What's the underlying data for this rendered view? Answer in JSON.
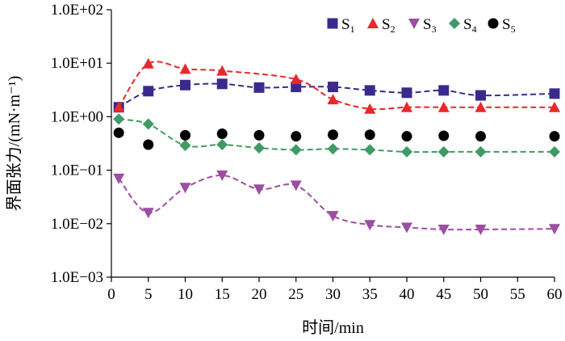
{
  "chart_data": {
    "type": "line",
    "xlabel": "时间/min",
    "ylabel": "界面张力/(mN·m⁻¹)",
    "x_ticks": [
      "0",
      "5",
      "10",
      "15",
      "20",
      "25",
      "30",
      "35",
      "40",
      "45",
      "50",
      "55",
      "60"
    ],
    "y_ticks": [
      "1.0E−03",
      "1.0E−02",
      "1.0E−01",
      "1.0E+00",
      "1.0E+01",
      "1.0E+02"
    ],
    "xlim": [
      0,
      60
    ],
    "ylim": [
      0.001,
      100
    ],
    "y_scale": "log",
    "legend_position": "top-right",
    "series": [
      {
        "name": "S1",
        "name_main": "S",
        "name_sub": "1",
        "marker": "square",
        "color": "#3B2A8C",
        "line": "dashed",
        "x": [
          1,
          5,
          10,
          15,
          20,
          25,
          30,
          35,
          40,
          45,
          50,
          60
        ],
        "y": [
          1.5,
          3.0,
          3.9,
          4.1,
          3.5,
          3.6,
          3.6,
          3.1,
          2.8,
          3.1,
          2.5,
          2.7
        ]
      },
      {
        "name": "S2",
        "name_main": "S",
        "name_sub": "2",
        "marker": "triangle-up",
        "color": "#E8282A",
        "line": "dashed",
        "x": [
          1,
          5,
          10,
          15,
          25,
          30,
          35,
          40,
          45,
          50,
          60
        ],
        "y": [
          1.5,
          9.8,
          7.8,
          7.2,
          5.0,
          2.1,
          1.4,
          1.5,
          1.5,
          1.5,
          1.5
        ]
      },
      {
        "name": "S3",
        "name_main": "S",
        "name_sub": "3",
        "marker": "triangle-down",
        "color": "#9B4FA0",
        "line": "dashed",
        "x": [
          1,
          5,
          10,
          15,
          20,
          25,
          30,
          35,
          40,
          45,
          50,
          60
        ],
        "y": [
          0.07,
          0.016,
          0.047,
          0.08,
          0.044,
          0.052,
          0.014,
          0.0095,
          0.0085,
          0.0078,
          0.0078,
          0.008
        ]
      },
      {
        "name": "S4",
        "name_main": "S",
        "name_sub": "4",
        "marker": "diamond",
        "color": "#3F9A65",
        "line": "dashed",
        "x": [
          1,
          5,
          10,
          15,
          20,
          25,
          30,
          35,
          40,
          45,
          50,
          60
        ],
        "y": [
          0.9,
          0.73,
          0.29,
          0.3,
          0.26,
          0.24,
          0.25,
          0.24,
          0.22,
          0.22,
          0.22,
          0.22
        ]
      },
      {
        "name": "S5",
        "name_main": "S",
        "name_sub": "5",
        "marker": "circle",
        "color": "#000000",
        "line": "none",
        "x": [
          1,
          5,
          10,
          15,
          20,
          25,
          30,
          35,
          40,
          45,
          50,
          60
        ],
        "y": [
          0.5,
          0.3,
          0.45,
          0.48,
          0.45,
          0.43,
          0.46,
          0.46,
          0.43,
          0.44,
          0.43,
          0.43
        ]
      }
    ]
  }
}
